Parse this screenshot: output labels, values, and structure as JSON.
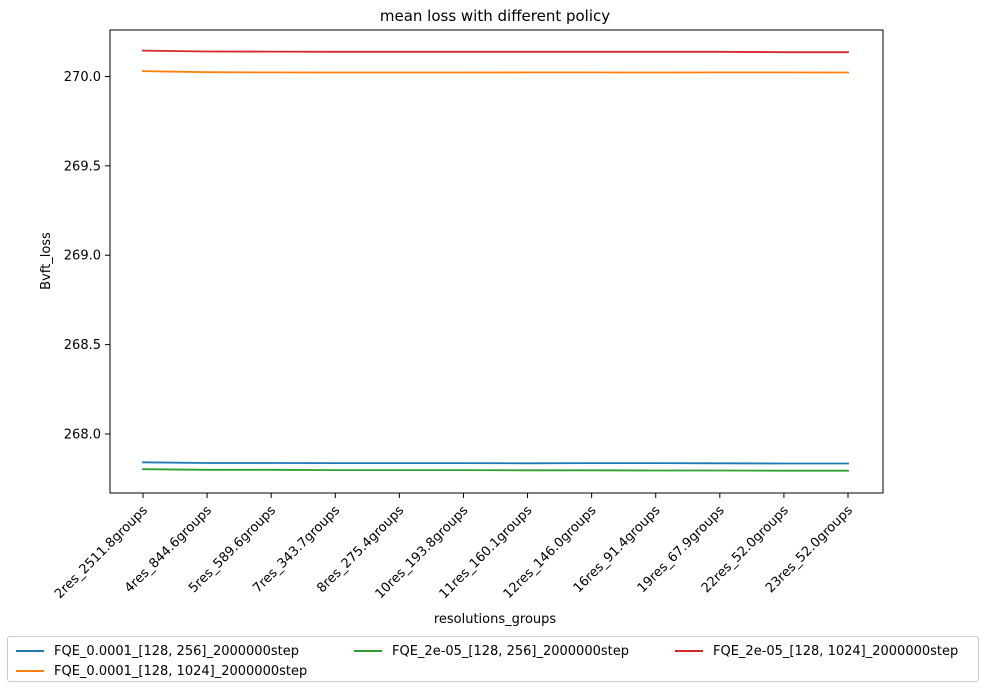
{
  "chart_data": {
    "type": "line",
    "title": "mean loss with different policy",
    "xlabel": "resolutions_groups",
    "ylabel": "Bvft_loss",
    "categories": [
      "2res_2511.8groups",
      "4res_844.6groups",
      "5res_589.6groups",
      "7res_343.7groups",
      "8res_275.4groups",
      "10res_193.8groups",
      "11res_160.1groups",
      "12res_146.0groups",
      "16res_91.4groups",
      "19res_67.9groups",
      "22res_52.0groups",
      "23res_52.0groups"
    ],
    "yticks": [
      "268.0",
      "268.5",
      "269.0",
      "269.5",
      "270.0"
    ],
    "ylim": [
      267.67,
      270.26
    ],
    "grid": false,
    "legend_position": "bottom",
    "series": [
      {
        "name": "FQE_0.0001_[128, 256]_2000000step",
        "color": "#1f77b4",
        "values": [
          267.842,
          267.838,
          267.838,
          267.837,
          267.837,
          267.837,
          267.836,
          267.837,
          267.837,
          267.836,
          267.835,
          267.835
        ]
      },
      {
        "name": "FQE_0.0001_[128, 1024]_2000000step",
        "color": "#ff7f0e",
        "values": [
          270.03,
          270.024,
          270.023,
          270.022,
          270.022,
          270.022,
          270.023,
          270.023,
          270.022,
          270.023,
          270.023,
          270.022
        ]
      },
      {
        "name": "FQE_2e-05_[128, 256]_2000000step",
        "color": "#2ca02c",
        "values": [
          267.803,
          267.8,
          267.8,
          267.798,
          267.798,
          267.798,
          267.797,
          267.797,
          267.796,
          267.796,
          267.795,
          267.795
        ]
      },
      {
        "name": "FQE_2e-05_[128, 1024]_2000000step",
        "color": "#d62728",
        "values": [
          270.145,
          270.14,
          270.139,
          270.138,
          270.138,
          270.138,
          270.138,
          270.138,
          270.138,
          270.138,
          270.136,
          270.136
        ]
      }
    ]
  }
}
